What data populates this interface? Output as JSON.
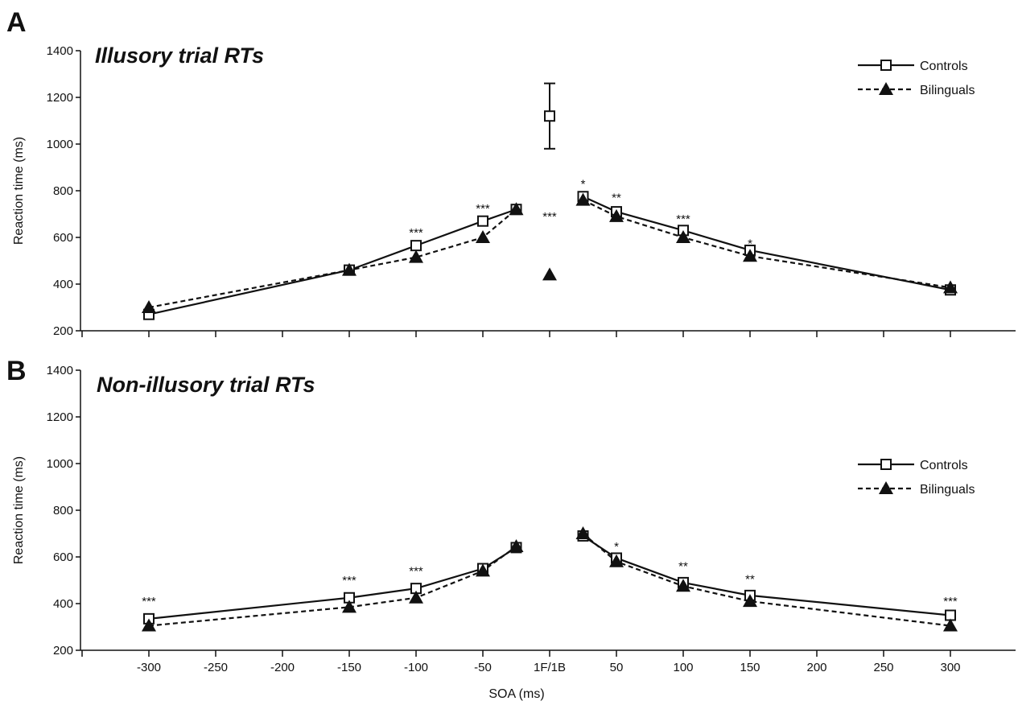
{
  "chart_data": [
    {
      "type": "line",
      "panel": "A",
      "title": "Illusory trial RTs",
      "xlabel": "",
      "ylabel": "Reaction time (ms)",
      "ylim": [
        200,
        1400
      ],
      "yticks": [
        "200",
        "400",
        "600",
        "800",
        "1000",
        "1200",
        "1400"
      ],
      "xticks_labeled": false,
      "legend": {
        "placement": "top-right"
      },
      "series": [
        {
          "name": "Controls",
          "line": "solid",
          "marker": "open-square",
          "color": "#111111",
          "segments": [
            {
              "x": [
                -300,
                -150,
                -100,
                -50,
                -25
              ],
              "y": [
                270,
                460,
                565,
                670,
                720
              ]
            },
            {
              "x": [
                25,
                50,
                100,
                150,
                300
              ],
              "y": [
                775,
                710,
                630,
                545,
                375
              ]
            }
          ],
          "single_points": [
            {
              "x": "1F/1B",
              "y": 1120,
              "error_low": 980,
              "error_high": 1260
            }
          ]
        },
        {
          "name": "Bilinguals",
          "line": "dashed",
          "marker": "filled-triangle",
          "color": "#111111",
          "segments": [
            {
              "x": [
                -300,
                -150,
                -100,
                -50,
                -25
              ],
              "y": [
                300,
                460,
                515,
                600,
                720
              ]
            },
            {
              "x": [
                25,
                50,
                100,
                150,
                300
              ],
              "y": [
                760,
                690,
                600,
                520,
                385
              ]
            }
          ],
          "single_points": [
            {
              "x": "1F/1B",
              "y": 440
            }
          ]
        }
      ],
      "annotations": [
        {
          "text": "***",
          "x": -100,
          "y": 620
        },
        {
          "text": "***",
          "x": -50,
          "y": 725
        },
        {
          "text": "***",
          "x": "1F/1B",
          "y": 690
        },
        {
          "text": "*",
          "x": 25,
          "y": 830
        },
        {
          "text": "**",
          "x": 50,
          "y": 770
        },
        {
          "text": "***",
          "x": 100,
          "y": 680
        },
        {
          "text": "*",
          "x": 150,
          "y": 575
        }
      ]
    },
    {
      "type": "line",
      "panel": "B",
      "title": "Non-illusory trial RTs",
      "xlabel": "SOA (ms)",
      "ylabel": "Reaction time (ms)",
      "ylim": [
        200,
        1400
      ],
      "yticks": [
        "200",
        "400",
        "600",
        "800",
        "1000",
        "1200",
        "1400"
      ],
      "xticks": [
        "-300",
        "-250",
        "-200",
        "-150",
        "-100",
        "-50",
        "1F/1B",
        "50",
        "100",
        "150",
        "200",
        "250",
        "300"
      ],
      "legend": {
        "placement": "right"
      },
      "series": [
        {
          "name": "Controls",
          "line": "solid",
          "marker": "open-square",
          "color": "#111111",
          "segments": [
            {
              "x": [
                -300,
                -150,
                -100,
                -50,
                -25
              ],
              "y": [
                335,
                425,
                465,
                550,
                640
              ]
            },
            {
              "x": [
                25,
                50,
                100,
                150,
                300
              ],
              "y": [
                690,
                595,
                490,
                435,
                350
              ]
            }
          ]
        },
        {
          "name": "Bilinguals",
          "line": "dashed",
          "marker": "filled-triangle",
          "color": "#111111",
          "segments": [
            {
              "x": [
                -300,
                -150,
                -100,
                -50,
                -25
              ],
              "y": [
                305,
                385,
                425,
                540,
                645
              ]
            },
            {
              "x": [
                25,
                50,
                100,
                150,
                300
              ],
              "y": [
                700,
                580,
                475,
                410,
                305
              ]
            }
          ]
        }
      ],
      "annotations": [
        {
          "text": "***",
          "x": -300,
          "y": 410
        },
        {
          "text": "***",
          "x": -150,
          "y": 500
        },
        {
          "text": "***",
          "x": -100,
          "y": 540
        },
        {
          "text": "*",
          "x": 50,
          "y": 645
        },
        {
          "text": "**",
          "x": 100,
          "y": 560
        },
        {
          "text": "**",
          "x": 150,
          "y": 505
        },
        {
          "text": "***",
          "x": 300,
          "y": 410
        }
      ]
    }
  ]
}
